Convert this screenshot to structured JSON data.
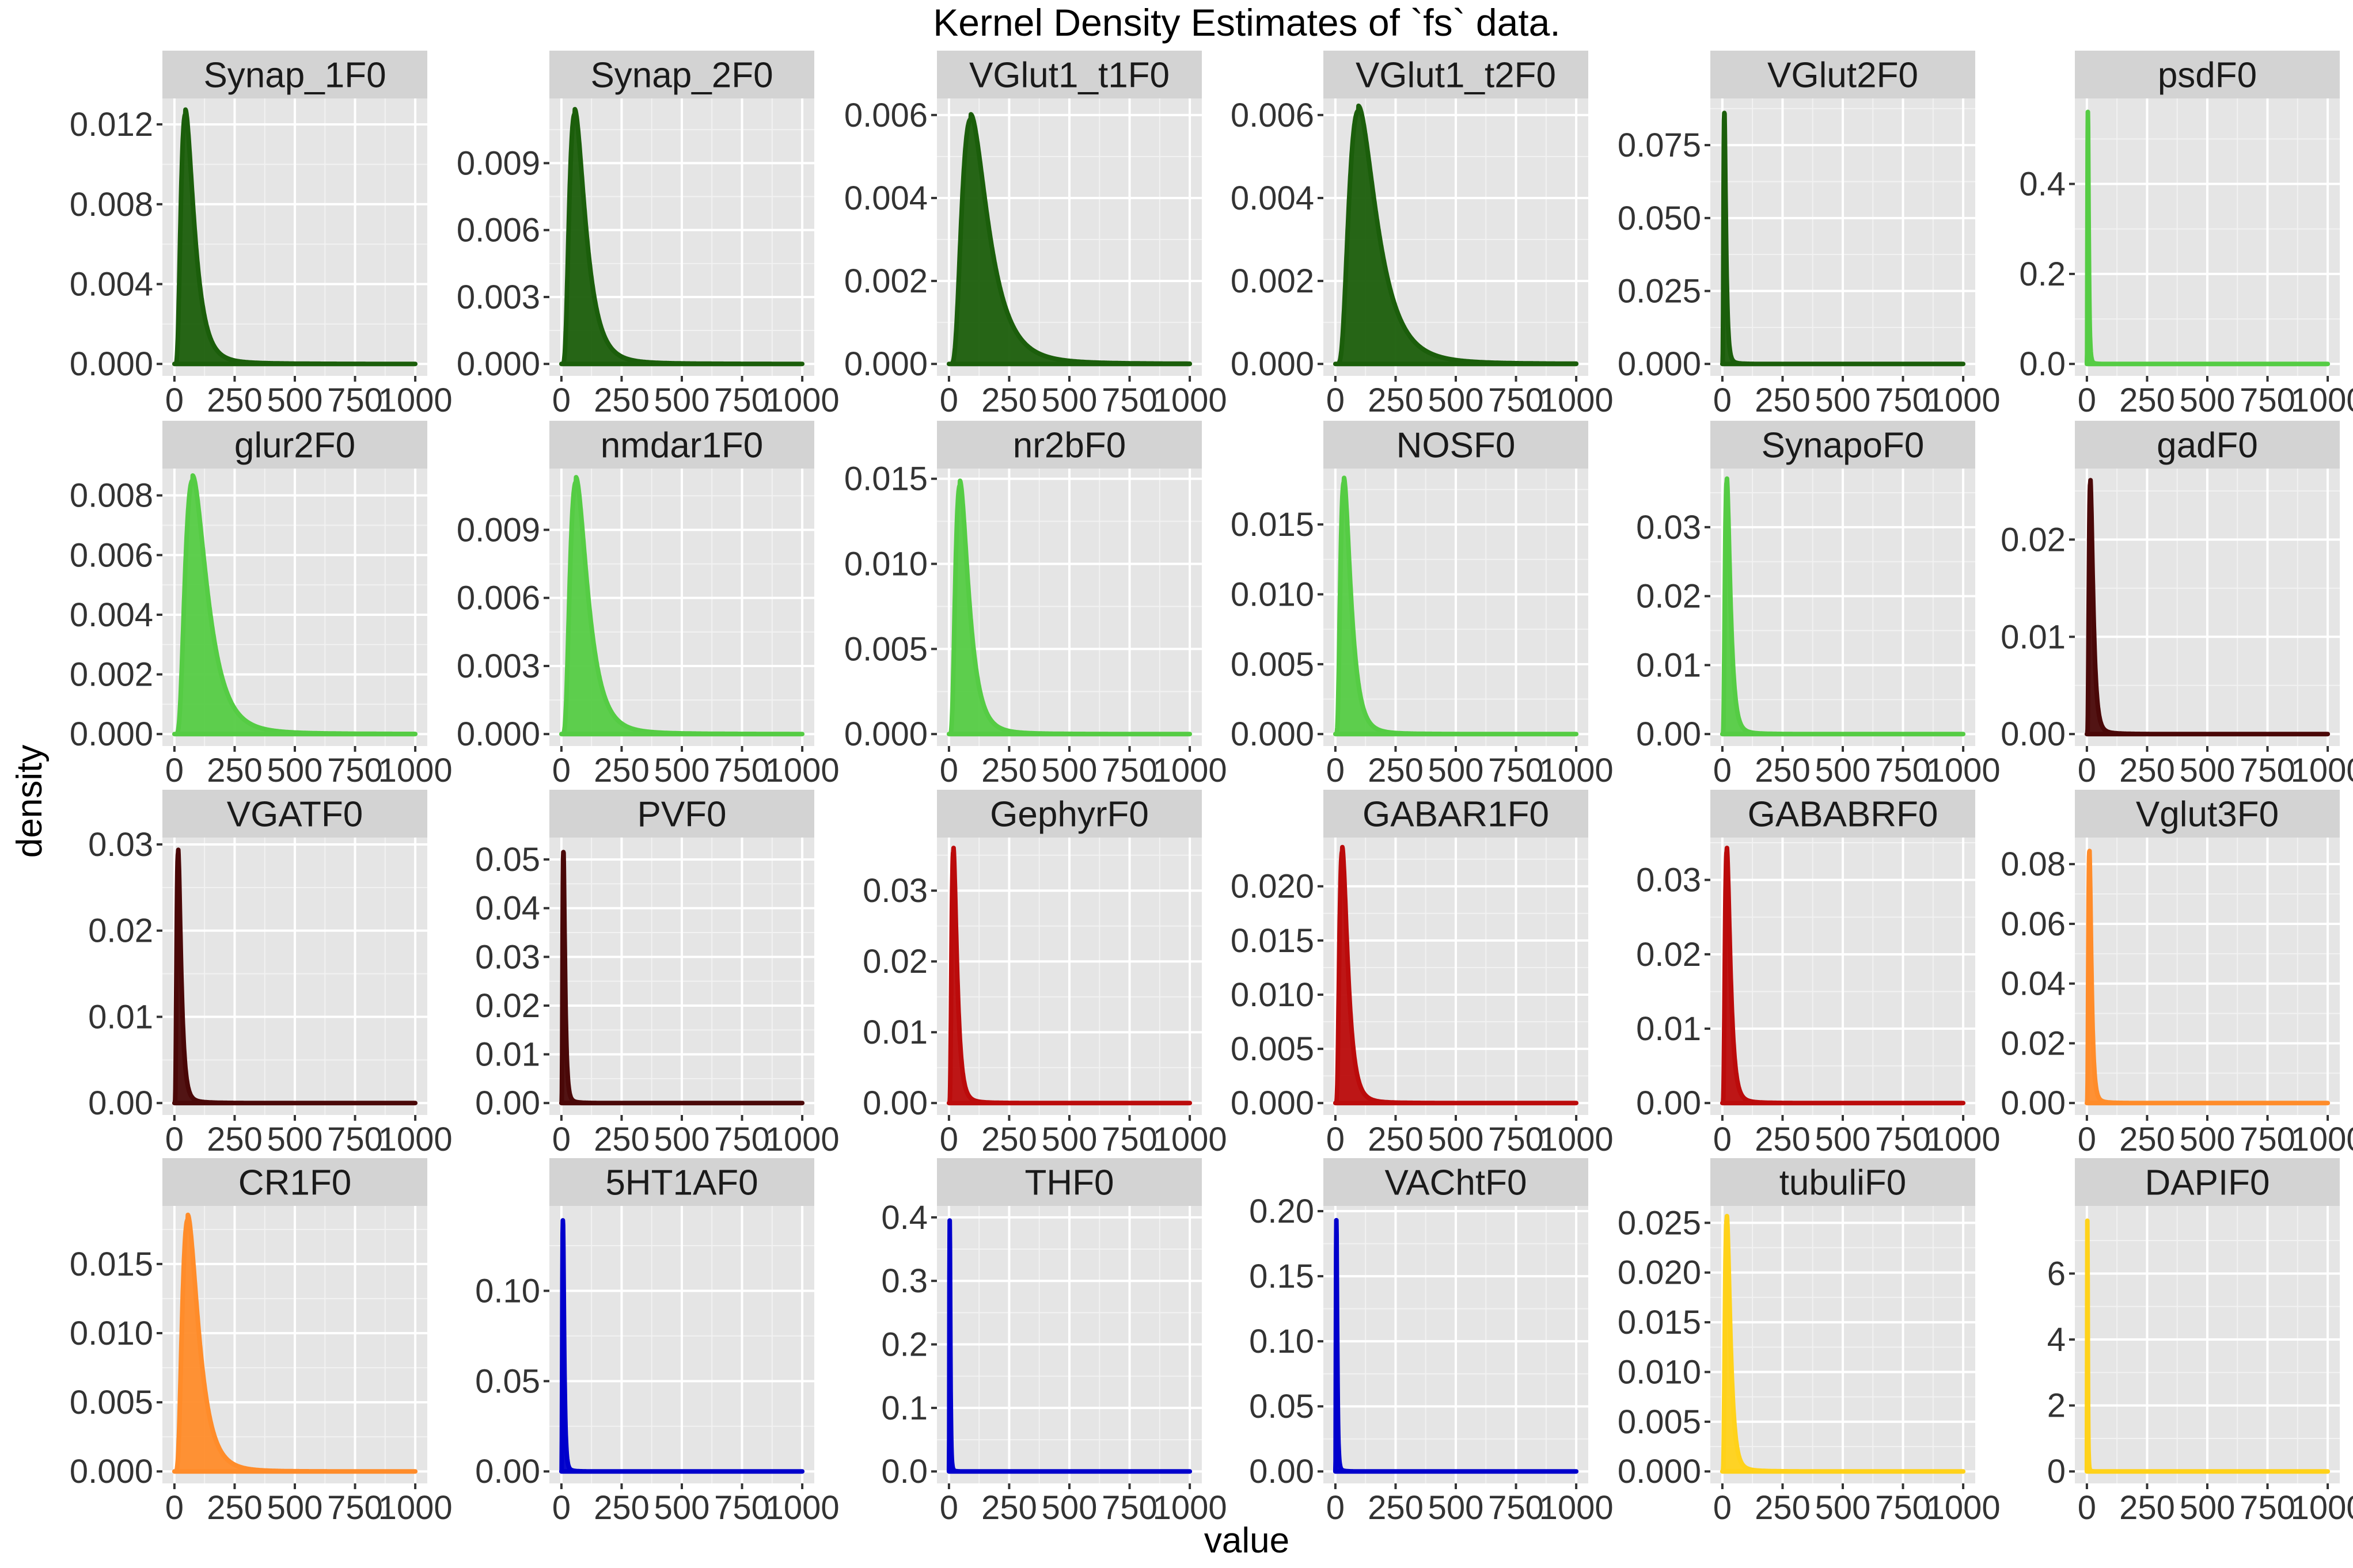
{
  "chart_data": {
    "type": "area",
    "title": "Kernel Density Estimates of `fs` data.",
    "xlabel": "value",
    "ylabel": "density",
    "xlim": [
      0,
      1000
    ],
    "x_ticks": [
      0,
      250,
      500,
      750,
      1000
    ],
    "x_tick_labels": [
      "0",
      "250",
      "500",
      "750",
      "1000"
    ],
    "grid": true,
    "facets": [
      {
        "name": "Synap_1F0",
        "color": "#1b5e0b",
        "peak_x": 45,
        "peak_y": 0.0125,
        "spread": 55,
        "y_ticks": [
          0,
          0.004,
          0.008,
          0.012
        ],
        "y_tick_labels": [
          "0.000",
          "0.004",
          "0.008",
          "0.012"
        ],
        "ylim": [
          0,
          0.0133
        ]
      },
      {
        "name": "Synap_2F0",
        "color": "#1b5e0b",
        "peak_x": 55,
        "peak_y": 0.0112,
        "spread": 60,
        "y_ticks": [
          0,
          0.003,
          0.006,
          0.009
        ],
        "y_tick_labels": [
          "0.000",
          "0.003",
          "0.006",
          "0.009"
        ],
        "ylim": [
          0,
          0.0119
        ]
      },
      {
        "name": "VGlut1_t1F0",
        "color": "#1b5e0b",
        "peak_x": 90,
        "peak_y": 0.0059,
        "spread": 95,
        "y_ticks": [
          0,
          0.002,
          0.004,
          0.006
        ],
        "y_tick_labels": [
          "0.000",
          "0.002",
          "0.004",
          "0.006"
        ],
        "ylim": [
          0,
          0.0064
        ]
      },
      {
        "name": "VGlut1_t2F0",
        "color": "#1b5e0b",
        "peak_x": 95,
        "peak_y": 0.0061,
        "spread": 95,
        "y_ticks": [
          0,
          0.002,
          0.004,
          0.006
        ],
        "y_tick_labels": [
          "0.000",
          "0.002",
          "0.004",
          "0.006"
        ],
        "ylim": [
          0,
          0.0064
        ]
      },
      {
        "name": "VGlut2F0",
        "color": "#1b5e0b",
        "peak_x": 8,
        "peak_y": 0.086,
        "spread": 9,
        "y_ticks": [
          0,
          0.025,
          0.05,
          0.075
        ],
        "y_tick_labels": [
          "0.000",
          "0.025",
          "0.050",
          "0.075"
        ],
        "ylim": [
          0,
          0.091
        ]
      },
      {
        "name": "psdF0",
        "color": "#55cc44",
        "peak_x": 4,
        "peak_y": 0.56,
        "spread": 4,
        "y_ticks": [
          0,
          0.2,
          0.4
        ],
        "y_tick_labels": [
          "0.0",
          "0.2",
          "0.4"
        ],
        "ylim": [
          0,
          0.59
        ]
      },
      {
        "name": "glur2F0",
        "color": "#55cc44",
        "peak_x": 75,
        "peak_y": 0.0085,
        "spread": 80,
        "y_ticks": [
          0,
          0.002,
          0.004,
          0.006,
          0.008
        ],
        "y_tick_labels": [
          "0.000",
          "0.002",
          "0.004",
          "0.006",
          "0.008"
        ],
        "ylim": [
          0,
          0.0089
        ]
      },
      {
        "name": "nmdar1F0",
        "color": "#55cc44",
        "peak_x": 60,
        "peak_y": 0.0111,
        "spread": 65,
        "y_ticks": [
          0,
          0.003,
          0.006,
          0.009
        ],
        "y_tick_labels": [
          "0.000",
          "0.003",
          "0.006",
          "0.009"
        ],
        "ylim": [
          0,
          0.0117
        ]
      },
      {
        "name": "nr2bF0",
        "color": "#55cc44",
        "peak_x": 45,
        "peak_y": 0.0146,
        "spread": 45,
        "y_ticks": [
          0,
          0.005,
          0.01,
          0.015
        ],
        "y_tick_labels": [
          "0.000",
          "0.005",
          "0.010",
          "0.015"
        ],
        "ylim": [
          0,
          0.0156
        ]
      },
      {
        "name": "NOSF0",
        "color": "#55cc44",
        "peak_x": 35,
        "peak_y": 0.018,
        "spread": 35,
        "y_ticks": [
          0,
          0.005,
          0.01,
          0.015
        ],
        "y_tick_labels": [
          "0.000",
          "0.005",
          "0.010",
          "0.015"
        ],
        "ylim": [
          0,
          0.019
        ]
      },
      {
        "name": "SynapoF0",
        "color": "#55cc44",
        "peak_x": 18,
        "peak_y": 0.0365,
        "spread": 20,
        "y_ticks": [
          0,
          0.01,
          0.02,
          0.03
        ],
        "y_tick_labels": [
          "0.00",
          "0.01",
          "0.02",
          "0.03"
        ],
        "ylim": [
          0,
          0.0385
        ]
      },
      {
        "name": "gadF0",
        "color": "#4a0808",
        "peak_x": 14,
        "peak_y": 0.0258,
        "spread": 18,
        "y_ticks": [
          0,
          0.01,
          0.02
        ],
        "y_tick_labels": [
          "0.00",
          "0.01",
          "0.02"
        ],
        "ylim": [
          0,
          0.0273
        ]
      },
      {
        "name": "VGATF0",
        "color": "#4a0808",
        "peak_x": 15,
        "peak_y": 0.029,
        "spread": 20,
        "y_ticks": [
          0,
          0.01,
          0.02,
          0.03
        ],
        "y_tick_labels": [
          "0.00",
          "0.01",
          "0.02",
          "0.03"
        ],
        "ylim": [
          0,
          0.0308
        ]
      },
      {
        "name": "PVF0",
        "color": "#4a0808",
        "peak_x": 8,
        "peak_y": 0.0515,
        "spread": 10,
        "y_ticks": [
          0,
          0.01,
          0.02,
          0.03,
          0.04,
          0.05
        ],
        "y_tick_labels": [
          "0.00",
          "0.01",
          "0.02",
          "0.03",
          "0.04",
          "0.05"
        ],
        "ylim": [
          0,
          0.0545
        ]
      },
      {
        "name": "GephyrF0",
        "color": "#bb0b0b",
        "peak_x": 18,
        "peak_y": 0.0355,
        "spread": 20,
        "y_ticks": [
          0,
          0.01,
          0.02,
          0.03
        ],
        "y_tick_labels": [
          "0.00",
          "0.01",
          "0.02",
          "0.03"
        ],
        "ylim": [
          0,
          0.0375
        ]
      },
      {
        "name": "GABAR1F0",
        "color": "#bb0b0b",
        "peak_x": 28,
        "peak_y": 0.0232,
        "spread": 28,
        "y_ticks": [
          0,
          0.005,
          0.01,
          0.015,
          0.02
        ],
        "y_tick_labels": [
          "0.000",
          "0.005",
          "0.010",
          "0.015",
          "0.020"
        ],
        "ylim": [
          0,
          0.0245
        ]
      },
      {
        "name": "GABABRF0",
        "color": "#bb0b0b",
        "peak_x": 18,
        "peak_y": 0.0338,
        "spread": 20,
        "y_ticks": [
          0,
          0.01,
          0.02,
          0.03
        ],
        "y_tick_labels": [
          "0.00",
          "0.01",
          "0.02",
          "0.03"
        ],
        "ylim": [
          0,
          0.0357
        ]
      },
      {
        "name": "Vglut3F0",
        "color": "#ff8c2a",
        "peak_x": 10,
        "peak_y": 0.084,
        "spread": 12,
        "y_ticks": [
          0,
          0.02,
          0.04,
          0.06,
          0.08
        ],
        "y_tick_labels": [
          "0.00",
          "0.02",
          "0.04",
          "0.06",
          "0.08"
        ],
        "ylim": [
          0,
          0.0889
        ]
      },
      {
        "name": "CR1F0",
        "color": "#ff8c2a",
        "peak_x": 55,
        "peak_y": 0.0182,
        "spread": 40,
        "y_ticks": [
          0,
          0.005,
          0.01,
          0.015
        ],
        "y_tick_labels": [
          "0.000",
          "0.005",
          "0.010",
          "0.015"
        ],
        "ylim": [
          0,
          0.0192
        ]
      },
      {
        "name": "5HT1AF0",
        "color": "#0000cc",
        "peak_x": 6,
        "peak_y": 0.139,
        "spread": 7,
        "y_ticks": [
          0,
          0.05,
          0.1
        ],
        "y_tick_labels": [
          "0.00",
          "0.05",
          "0.10"
        ],
        "ylim": [
          0,
          0.147
        ]
      },
      {
        "name": "THF0",
        "color": "#0000cc",
        "peak_x": 3,
        "peak_y": 0.395,
        "spread": 3,
        "y_ticks": [
          0,
          0.1,
          0.2,
          0.3,
          0.4
        ],
        "y_tick_labels": [
          "0.0",
          "0.1",
          "0.2",
          "0.3",
          "0.4"
        ],
        "ylim": [
          0,
          0.418
        ]
      },
      {
        "name": "VAChtF0",
        "color": "#0000cc",
        "peak_x": 4,
        "peak_y": 0.193,
        "spread": 5,
        "y_ticks": [
          0,
          0.05,
          0.1,
          0.15,
          0.2
        ],
        "y_tick_labels": [
          "0.00",
          "0.05",
          "0.10",
          "0.15",
          "0.20"
        ],
        "ylim": [
          0,
          0.204
        ]
      },
      {
        "name": "tubuliF0",
        "color": "#ffd21a",
        "peak_x": 18,
        "peak_y": 0.0253,
        "spread": 22,
        "y_ticks": [
          0,
          0.005,
          0.01,
          0.015,
          0.02,
          0.025
        ],
        "y_tick_labels": [
          "0.000",
          "0.005",
          "0.010",
          "0.015",
          "0.020",
          "0.025"
        ],
        "ylim": [
          0,
          0.0267
        ]
      },
      {
        "name": "DAPIF0",
        "color": "#ffd21a",
        "peak_x": 2,
        "peak_y": 7.6,
        "spread": 2,
        "y_ticks": [
          0,
          2,
          4,
          6
        ],
        "y_tick_labels": [
          "0",
          "2",
          "4",
          "6"
        ],
        "ylim": [
          0,
          8.05
        ]
      }
    ]
  }
}
